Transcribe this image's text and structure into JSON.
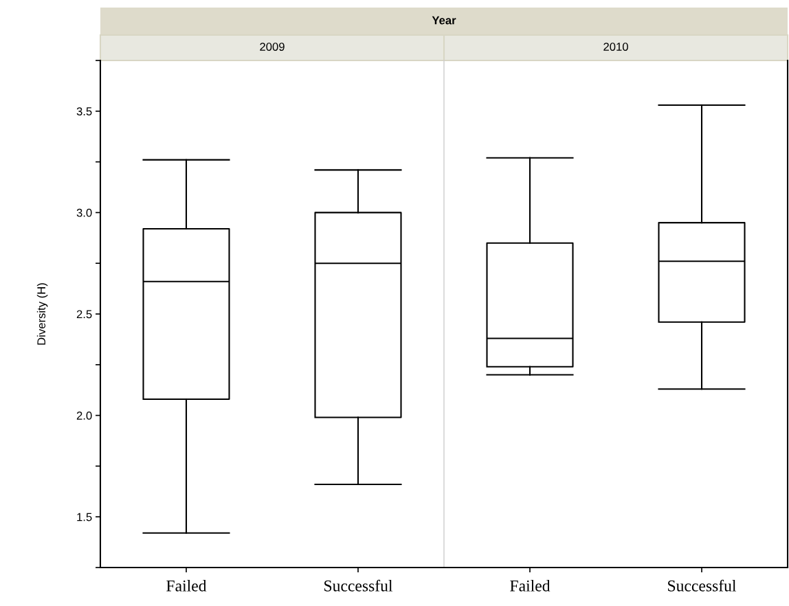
{
  "chart_data": [
    {
      "type": "box",
      "title": "2009",
      "annotations": [
        "Year"
      ],
      "ylabel": "Diversity (H)",
      "categories": [
        "Failed",
        "Successful"
      ],
      "boxes": [
        {
          "low": 1.42,
          "q1": 2.08,
          "median": 2.66,
          "q3": 2.92,
          "high": 3.26
        },
        {
          "low": 1.66,
          "q1": 1.99,
          "median": 2.75,
          "q3": 3.0,
          "high": 3.21
        }
      ],
      "ylim": [
        1.25,
        3.75
      ],
      "yticks": [
        {
          "value": 1.25,
          "label": null
        },
        1.5,
        {
          "value": 1.75,
          "label": null
        },
        {
          "value": 2,
          "label": "2.0"
        },
        {
          "value": 2.25,
          "label": null
        },
        2.5,
        {
          "value": 2.75,
          "label": null
        },
        {
          "value": 3,
          "label": "3.0"
        },
        {
          "value": 3.25,
          "label": null
        },
        3.5,
        {
          "value": 3.75,
          "label": null
        }
      ],
      "grid": false
    },
    {
      "type": "box",
      "title": "2010",
      "categories": [
        "Failed",
        "Successful"
      ],
      "boxes": [
        {
          "low": 2.2,
          "q1": 2.24,
          "median": 2.38,
          "q3": 2.85,
          "high": 3.27
        },
        {
          "low": 2.13,
          "q1": 2.46,
          "median": 2.76,
          "q3": 2.95,
          "high": 3.53
        }
      ],
      "ylim": [
        1.25,
        3.75
      ],
      "tick_labels": "x",
      "grid": false
    }
  ]
}
